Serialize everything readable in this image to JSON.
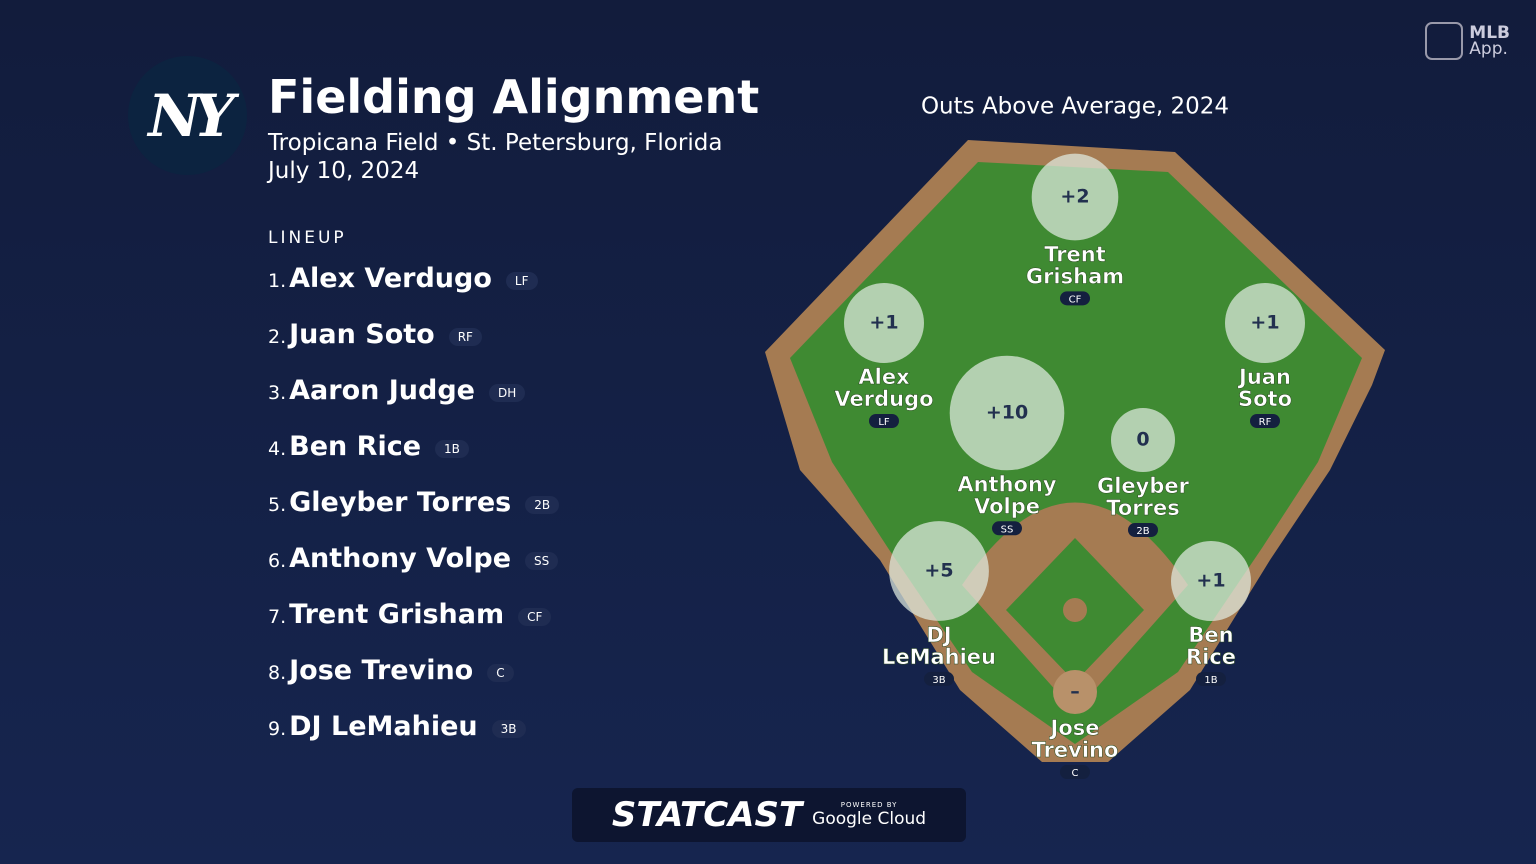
{
  "branding": {
    "logo": "NY",
    "app_line1": "MLB",
    "app_line2": "App.",
    "statcast": "STATCAST",
    "powered_by": "POWERED BY",
    "google_cloud": "Google Cloud"
  },
  "header": {
    "title": "Fielding Alignment",
    "venue": "Tropicana Field • St. Petersburg, Florida",
    "date": "July 10, 2024"
  },
  "lineup": {
    "label": "LINEUP",
    "players": [
      {
        "order": "1.",
        "name": "Alex Verdugo",
        "pos": "LF"
      },
      {
        "order": "2.",
        "name": "Juan Soto",
        "pos": "RF"
      },
      {
        "order": "3.",
        "name": "Aaron Judge",
        "pos": "DH"
      },
      {
        "order": "4.",
        "name": "Ben Rice",
        "pos": "1B"
      },
      {
        "order": "5.",
        "name": "Gleyber Torres",
        "pos": "2B"
      },
      {
        "order": "6.",
        "name": "Anthony Volpe",
        "pos": "SS"
      },
      {
        "order": "7.",
        "name": "Trent Grisham",
        "pos": "CF"
      },
      {
        "order": "8.",
        "name": "Jose Trevino",
        "pos": "C"
      },
      {
        "order": "9.",
        "name": "DJ LeMahieu",
        "pos": "3B"
      }
    ]
  },
  "field": {
    "title": "Outs Above Average, 2024",
    "fielders": [
      {
        "oaa": {
          "value": 2,
          "label": "+2"
        },
        "name": [
          "Trent",
          "Grisham"
        ],
        "pos": "CF"
      },
      {
        "oaa": {
          "value": 1,
          "label": "+1"
        },
        "name": [
          "Alex",
          "Verdugo"
        ],
        "pos": "LF"
      },
      {
        "oaa": {
          "value": 1,
          "label": "+1"
        },
        "name": [
          "Juan",
          "Soto"
        ],
        "pos": "RF"
      },
      {
        "oaa": {
          "value": 10,
          "label": "+10"
        },
        "name": [
          "Anthony",
          "Volpe"
        ],
        "pos": "SS"
      },
      {
        "oaa": {
          "value": 0,
          "label": "0"
        },
        "name": [
          "Gleyber",
          "Torres"
        ],
        "pos": "2B"
      },
      {
        "oaa": {
          "value": 5,
          "label": "+5"
        },
        "name": [
          "DJ",
          "LeMahieu"
        ],
        "pos": "3B"
      },
      {
        "oaa": {
          "value": 1,
          "label": "+1"
        },
        "name": [
          "Ben",
          "Rice"
        ],
        "pos": "1B"
      },
      {
        "oaa": {
          "value": null,
          "label": "–"
        },
        "name": [
          "Jose",
          "Trevino"
        ],
        "pos": "C"
      }
    ]
  }
}
